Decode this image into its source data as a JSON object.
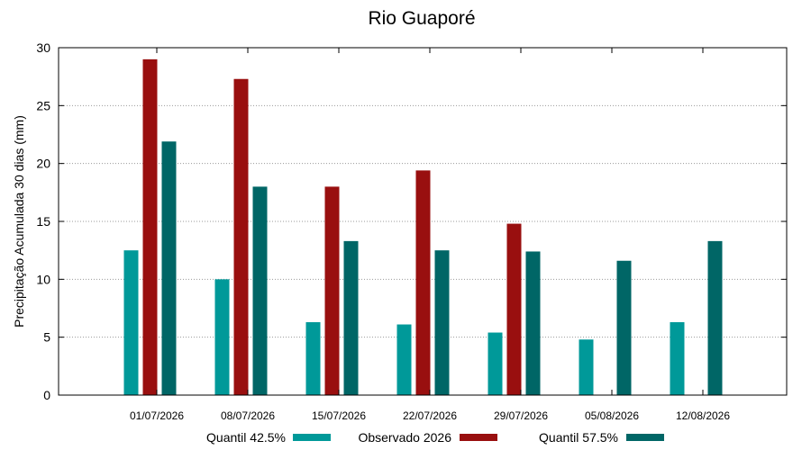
{
  "chart_data": {
    "type": "bar",
    "title": "Rio Guaporé",
    "ylabel": "Precipitação Acumulada 30 dias (mm)",
    "xlabel": "",
    "ylim": [
      0,
      30
    ],
    "yticks": [
      0,
      5,
      10,
      15,
      20,
      25,
      30
    ],
    "grid": "horizontal dotted",
    "legend_position": "bottom",
    "categories": [
      "01/07/2026",
      "08/07/2026",
      "15/07/2026",
      "22/07/2026",
      "29/07/2026",
      "05/08/2026",
      "12/08/2026"
    ],
    "series": [
      {
        "name": "Quantil 42.5%",
        "color": "#009999",
        "values": [
          12.5,
          10.0,
          6.3,
          6.1,
          5.4,
          4.8,
          6.3
        ]
      },
      {
        "name": "Observado 2026",
        "color": "#990f0f",
        "values": [
          29.0,
          27.3,
          18.0,
          19.4,
          14.8,
          null,
          null
        ]
      },
      {
        "name": "Quantil 57.5%",
        "color": "#006666",
        "values": [
          21.9,
          18.0,
          13.3,
          12.5,
          12.4,
          11.6,
          13.3
        ]
      }
    ]
  }
}
